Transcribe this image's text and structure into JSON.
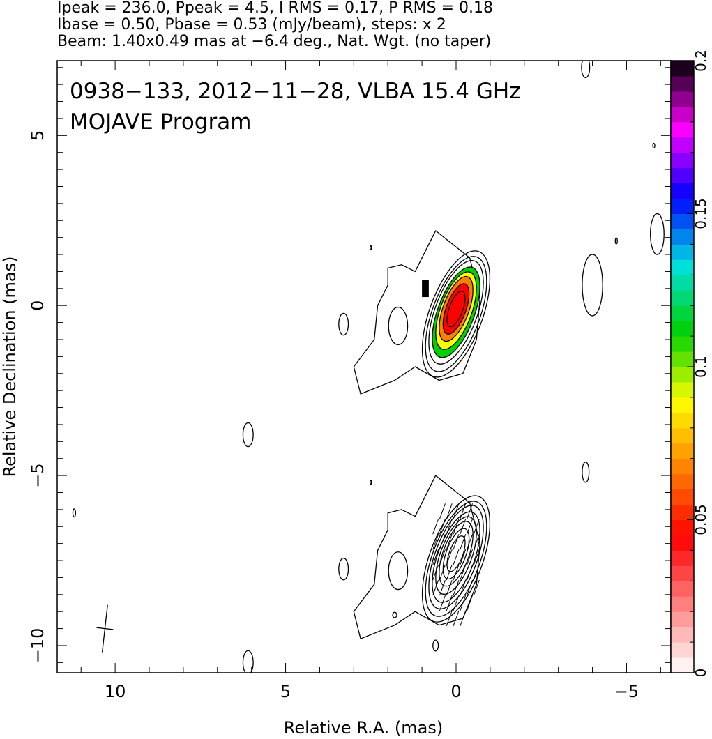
{
  "header": {
    "line1": "Ipeak = 236.0, Ppeak = 4.5, I RMS = 0.17, P RMS = 0.18",
    "line2": "Ibase = 0.50, Pbase = 0.53 (mJy/beam), steps: x 2",
    "line3": "Beam: 1.40x0.49 mas at −6.4 deg., Nat. Wgt. (no taper)"
  },
  "chart_data": {
    "type": "contour",
    "title": "0938−133, 2012−11−28, VLBA 15.4 GHz",
    "subtitle": "MOJAVE Program",
    "xlabel": "Relative R.A. (mas)",
    "ylabel": "Relative Declination (mas)",
    "xlim": [
      11.7,
      -6.3
    ],
    "ylim": [
      -10.8,
      7.2
    ],
    "x_ticks": [
      10,
      5,
      0,
      -5
    ],
    "x_tick_labels": [
      "10",
      "5",
      "0",
      "−5"
    ],
    "y_ticks": [
      5,
      0,
      -5,
      -10
    ],
    "y_tick_labels": [
      "5",
      "0",
      "−5",
      "−10"
    ],
    "beam": {
      "major_mas": 1.4,
      "minor_mas": 0.49,
      "pa_deg": -6.4
    },
    "colorbar": {
      "min": 0,
      "max": 0.2,
      "ticks": [
        0,
        0.05,
        0.1,
        0.15,
        0.2
      ],
      "tick_labels": [
        "0",
        "0.05",
        "0.1",
        "0.15",
        "0.2"
      ],
      "colors": [
        "#ffffff",
        "#ff8080",
        "#ff0000",
        "#ff8000",
        "#ffff00",
        "#00d000",
        "#00e0e0",
        "#0000ff",
        "#ff00ff",
        "#000000"
      ]
    },
    "panels": [
      {
        "name": "upper",
        "dec_offset_mas": 0,
        "shows_polarization_color": true,
        "peak_color": "#ff2020"
      },
      {
        "name": "lower",
        "dec_offset_mas": -7.2,
        "shows_evpa_ticks": true
      }
    ]
  }
}
